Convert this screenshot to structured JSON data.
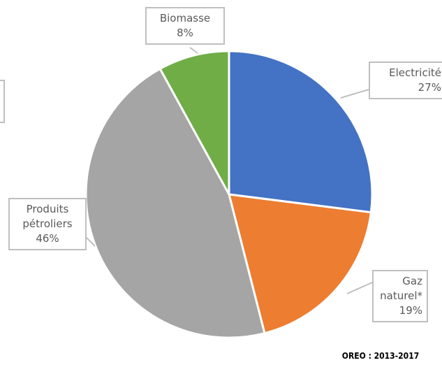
{
  "chart_data": {
    "type": "pie",
    "categories": [
      "Electricité",
      "Gaz naturel*",
      "Produits pétroliers",
      "Biomasse"
    ],
    "values": [
      27,
      19,
      46,
      8
    ],
    "value_labels": [
      "27%",
      "19%",
      "46%",
      "8%"
    ],
    "colors": [
      "#4472c4",
      "#ed7d31",
      "#a5a5a5",
      "#70ad47"
    ],
    "source": "OREO : 2013-2017"
  }
}
